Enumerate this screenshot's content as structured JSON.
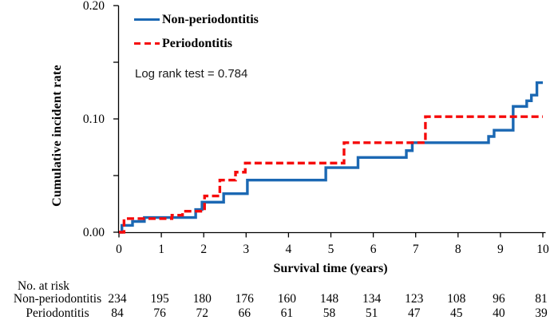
{
  "figure": {
    "ylabel": "Cumulative incident rate",
    "xlabel": "Survival time (years)",
    "annotation": "Log rank test = 0.784"
  },
  "chart_data": {
    "type": "line",
    "subtype": "step",
    "title": "",
    "xlabel": "Survival time (years)",
    "ylabel": "Cumulative incident rate",
    "xlim": [
      0,
      10
    ],
    "ylim": [
      0,
      0.2
    ],
    "grid": false,
    "legend_position": "top-left-inside",
    "annotation": "Log rank test = 0.784",
    "x_ticks": [
      0,
      1,
      2,
      3,
      4,
      5,
      6,
      7,
      8,
      9,
      10
    ],
    "y_ticks": [
      {
        "v": 0.0,
        "label": "0.00"
      },
      {
        "v": 0.05,
        "label": ""
      },
      {
        "v": 0.1,
        "label": "0.10"
      },
      {
        "v": 0.15,
        "label": ""
      },
      {
        "v": 0.2,
        "label": "0.20"
      }
    ],
    "series": [
      {
        "name": "Non-periodontitis",
        "color": "#1b68b3",
        "style": "solid",
        "points": [
          [
            0,
            0
          ],
          [
            0.07,
            0.006
          ],
          [
            0.32,
            0.0095
          ],
          [
            0.6,
            0.013
          ],
          [
            1.81,
            0.02
          ],
          [
            1.96,
            0.0265
          ],
          [
            2.47,
            0.034
          ],
          [
            3.03,
            0.046
          ],
          [
            4.88,
            0.057
          ],
          [
            5.64,
            0.066
          ],
          [
            6.78,
            0.072
          ],
          [
            6.92,
            0.079
          ],
          [
            8.72,
            0.0845
          ],
          [
            8.85,
            0.09
          ],
          [
            9.3,
            0.111
          ],
          [
            9.62,
            0.116
          ],
          [
            9.73,
            0.121
          ],
          [
            9.86,
            0.132
          ],
          [
            10,
            0.132
          ]
        ]
      },
      {
        "name": "Periodontitis",
        "color": "#f50a0a",
        "style": "dashed",
        "points": [
          [
            0,
            0
          ],
          [
            0.12,
            0.012
          ],
          [
            1.25,
            0.015
          ],
          [
            1.5,
            0.0185
          ],
          [
            2.02,
            0.032
          ],
          [
            2.38,
            0.046
          ],
          [
            2.75,
            0.053
          ],
          [
            2.98,
            0.061
          ],
          [
            5.31,
            0.079
          ],
          [
            7.23,
            0.102
          ],
          [
            10,
            0.102
          ]
        ]
      }
    ]
  },
  "risk_table": {
    "header": "No. at risk",
    "rows": [
      {
        "label": "Non-periodontitis",
        "values": [
          234,
          195,
          180,
          176,
          160,
          148,
          134,
          123,
          108,
          96,
          81
        ]
      },
      {
        "label": "Periodontitis",
        "values": [
          84,
          76,
          72,
          66,
          61,
          58,
          51,
          47,
          45,
          40,
          39
        ]
      }
    ]
  }
}
